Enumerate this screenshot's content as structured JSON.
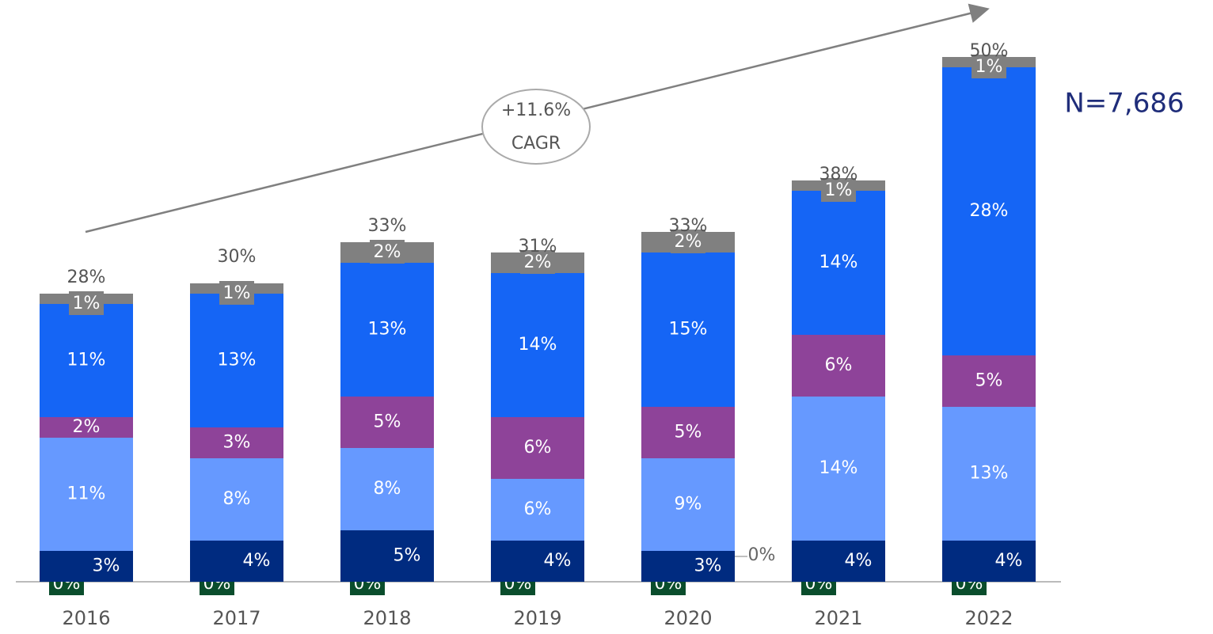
{
  "chart_data": {
    "type": "stacked_bar",
    "categories": [
      "2016",
      "2017",
      "2018",
      "2019",
      "2020",
      "2021",
      "2022"
    ],
    "series": [
      {
        "color": "#0a4d2c",
        "values": [
          0,
          0,
          0,
          0,
          0,
          0,
          0
        ],
        "value_labels": [
          "0%",
          "0%",
          "0%",
          "0%",
          "0%",
          "0%",
          "0%"
        ]
      },
      {
        "color": "#f2c744",
        "values": [
          0,
          0,
          0,
          0,
          0,
          0,
          0
        ],
        "value_labels": [
          "0%",
          "0%",
          "0%",
          "0%",
          "0%",
          "0%",
          "0%"
        ]
      },
      {
        "color": "#002b80",
        "values": [
          3,
          4,
          5,
          4,
          3,
          4,
          4
        ],
        "value_labels": [
          "3%",
          "4%",
          "5%",
          "4%",
          "3%",
          "4%",
          "4%"
        ]
      },
      {
        "color": "#6699ff",
        "values": [
          11,
          8,
          8,
          6,
          9,
          14,
          13
        ],
        "value_labels": [
          "11%",
          "8%",
          "8%",
          "6%",
          "9%",
          "14%",
          "13%"
        ]
      },
      {
        "color": "#8e4399",
        "values": [
          2,
          3,
          5,
          6,
          5,
          6,
          5
        ],
        "value_labels": [
          "2%",
          "3%",
          "5%",
          "6%",
          "5%",
          "6%",
          "5%"
        ]
      },
      {
        "color": "#1565f5",
        "values": [
          11,
          13,
          13,
          14,
          15,
          14,
          28
        ],
        "value_labels": [
          "11%",
          "13%",
          "13%",
          "14%",
          "15%",
          "14%",
          "28%"
        ]
      },
      {
        "color": "#808080",
        "values": [
          1,
          1,
          2,
          2,
          2,
          1,
          1
        ],
        "value_labels": [
          "1%",
          "1%",
          "2%",
          "2%",
          "2%",
          "1%",
          "1%"
        ]
      }
    ],
    "totals": [
      28,
      30,
      33,
      31,
      33,
      38,
      50
    ],
    "total_labels": [
      "28%",
      "30%",
      "33%",
      "31%",
      "33%",
      "38%",
      "50%"
    ],
    "annotations": [
      "+11.6%",
      "CAGR",
      "N=7,686"
    ]
  }
}
